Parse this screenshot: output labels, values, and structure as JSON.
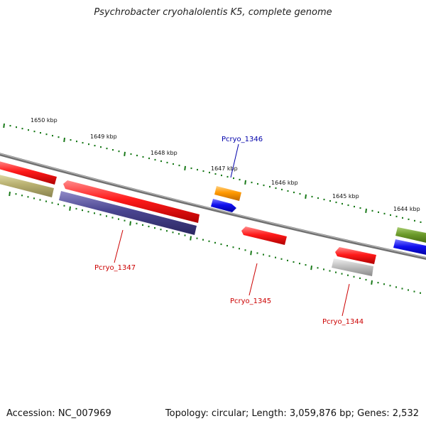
{
  "title": "Psychrobacter cryohalolentis K5, complete genome",
  "footer": {
    "accession": "Accession: NC_007969",
    "summary": "Topology: circular; Length: 3,059,876 bp; Genes: 2,532"
  },
  "scale_labels": [
    "1650 kbp",
    "1649 kbp",
    "1648 kbp",
    "1647 kbp",
    "1646 kbp",
    "1645 kbp",
    "1644 kbp"
  ],
  "gene_labels": [
    {
      "text": "Pcryo_1346",
      "color": "#0000aa"
    },
    {
      "text": "Pcryo_1347",
      "color": "#cc0000"
    },
    {
      "text": "Pcryo_1345",
      "color": "#cc0000"
    },
    {
      "text": "Pcryo_1344",
      "color": "#cc0000"
    }
  ],
  "colors": {
    "backbone": "#808080",
    "ticks": "#1a7a1a",
    "red": "#ff1a1a",
    "navy": "#4a4590",
    "olive": "#b8b070",
    "orange": "#ff9900",
    "blue": "#1010ee",
    "gray": "#c0c0c0",
    "green": "#6b9a2a"
  }
}
